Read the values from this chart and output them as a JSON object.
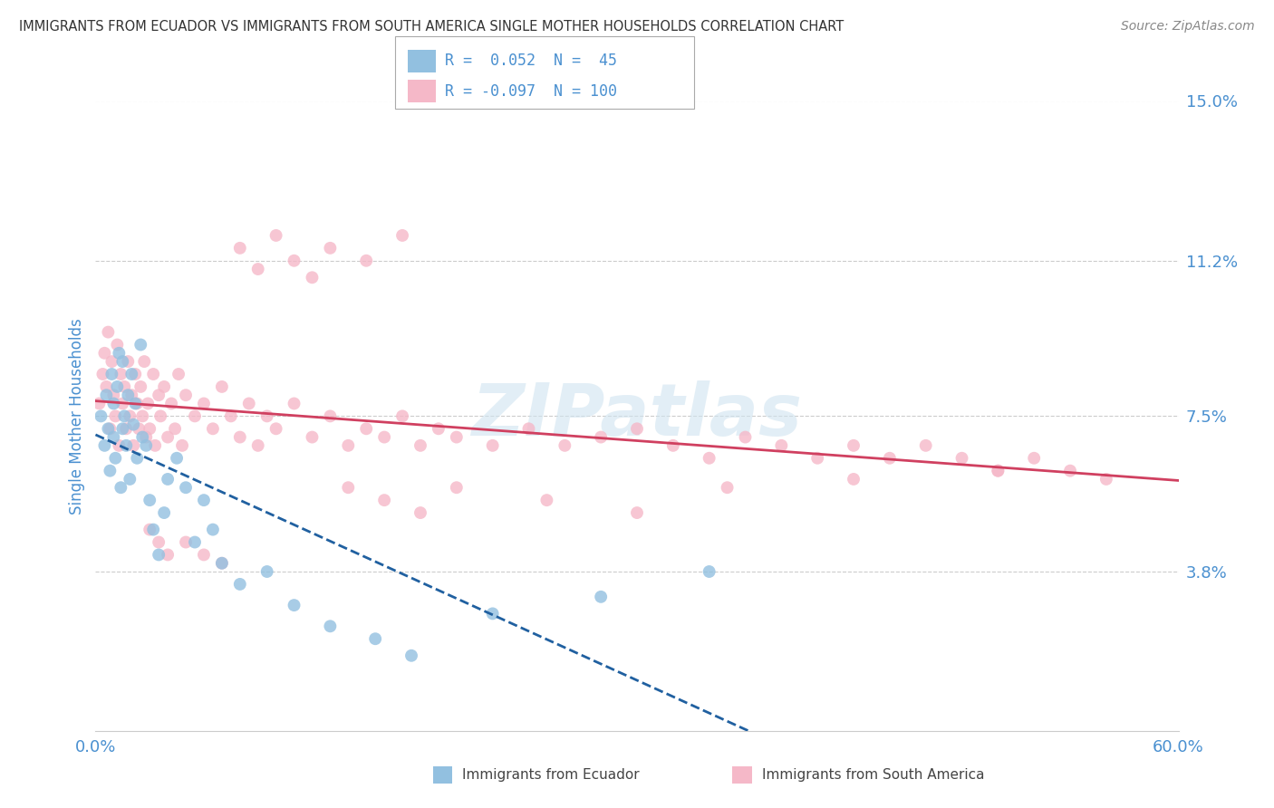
{
  "title": "IMMIGRANTS FROM ECUADOR VS IMMIGRANTS FROM SOUTH AMERICA SINGLE MOTHER HOUSEHOLDS CORRELATION CHART",
  "source": "Source: ZipAtlas.com",
  "ylabel": "Single Mother Households",
  "xmin": 0.0,
  "xmax": 0.6,
  "ymin": 0.0,
  "ymax": 0.15,
  "yticks": [
    0.038,
    0.075,
    0.112,
    0.15
  ],
  "ytick_labels": [
    "3.8%",
    "7.5%",
    "11.2%",
    "15.0%"
  ],
  "xtick_labels": [
    "0.0%",
    "60.0%"
  ],
  "color_blue": "#92c0e0",
  "color_pink": "#f5b8c8",
  "color_line_blue": "#2060a0",
  "color_line_pink": "#d04060",
  "color_tick_label": "#4a90d0",
  "color_axis_label": "#4a90d0",
  "ecuador_x": [
    0.003,
    0.005,
    0.006,
    0.007,
    0.008,
    0.009,
    0.01,
    0.01,
    0.011,
    0.012,
    0.013,
    0.014,
    0.015,
    0.015,
    0.016,
    0.017,
    0.018,
    0.019,
    0.02,
    0.021,
    0.022,
    0.023,
    0.025,
    0.026,
    0.028,
    0.03,
    0.032,
    0.035,
    0.038,
    0.04,
    0.045,
    0.05,
    0.055,
    0.06,
    0.065,
    0.07,
    0.08,
    0.095,
    0.11,
    0.13,
    0.155,
    0.175,
    0.22,
    0.28,
    0.34
  ],
  "ecuador_y": [
    0.075,
    0.068,
    0.08,
    0.072,
    0.062,
    0.085,
    0.07,
    0.078,
    0.065,
    0.082,
    0.09,
    0.058,
    0.088,
    0.072,
    0.075,
    0.068,
    0.08,
    0.06,
    0.085,
    0.073,
    0.078,
    0.065,
    0.092,
    0.07,
    0.068,
    0.055,
    0.048,
    0.042,
    0.052,
    0.06,
    0.065,
    0.058,
    0.045,
    0.055,
    0.048,
    0.04,
    0.035,
    0.038,
    0.03,
    0.025,
    0.022,
    0.018,
    0.028,
    0.032,
    0.038
  ],
  "southamerica_x": [
    0.002,
    0.004,
    0.005,
    0.006,
    0.007,
    0.008,
    0.009,
    0.01,
    0.011,
    0.012,
    0.013,
    0.014,
    0.015,
    0.016,
    0.017,
    0.018,
    0.019,
    0.02,
    0.021,
    0.022,
    0.023,
    0.024,
    0.025,
    0.026,
    0.027,
    0.028,
    0.029,
    0.03,
    0.032,
    0.033,
    0.035,
    0.036,
    0.038,
    0.04,
    0.042,
    0.044,
    0.046,
    0.048,
    0.05,
    0.055,
    0.06,
    0.065,
    0.07,
    0.075,
    0.08,
    0.085,
    0.09,
    0.095,
    0.1,
    0.11,
    0.12,
    0.13,
    0.14,
    0.15,
    0.16,
    0.17,
    0.18,
    0.19,
    0.2,
    0.22,
    0.24,
    0.26,
    0.28,
    0.3,
    0.32,
    0.34,
    0.36,
    0.38,
    0.4,
    0.42,
    0.44,
    0.46,
    0.48,
    0.5,
    0.52,
    0.54,
    0.08,
    0.09,
    0.1,
    0.11,
    0.12,
    0.13,
    0.15,
    0.17,
    0.05,
    0.06,
    0.07,
    0.03,
    0.035,
    0.04,
    0.14,
    0.16,
    0.18,
    0.2,
    0.25,
    0.3,
    0.35,
    0.42,
    0.5,
    0.56
  ],
  "southamerica_y": [
    0.078,
    0.085,
    0.09,
    0.082,
    0.095,
    0.072,
    0.088,
    0.08,
    0.075,
    0.092,
    0.068,
    0.085,
    0.078,
    0.082,
    0.072,
    0.088,
    0.075,
    0.08,
    0.068,
    0.085,
    0.078,
    0.072,
    0.082,
    0.075,
    0.088,
    0.07,
    0.078,
    0.072,
    0.085,
    0.068,
    0.08,
    0.075,
    0.082,
    0.07,
    0.078,
    0.072,
    0.085,
    0.068,
    0.08,
    0.075,
    0.078,
    0.072,
    0.082,
    0.075,
    0.07,
    0.078,
    0.068,
    0.075,
    0.072,
    0.078,
    0.07,
    0.075,
    0.068,
    0.072,
    0.07,
    0.075,
    0.068,
    0.072,
    0.07,
    0.068,
    0.072,
    0.068,
    0.07,
    0.072,
    0.068,
    0.065,
    0.07,
    0.068,
    0.065,
    0.068,
    0.065,
    0.068,
    0.065,
    0.062,
    0.065,
    0.062,
    0.115,
    0.11,
    0.118,
    0.112,
    0.108,
    0.115,
    0.112,
    0.118,
    0.045,
    0.042,
    0.04,
    0.048,
    0.045,
    0.042,
    0.058,
    0.055,
    0.052,
    0.058,
    0.055,
    0.052,
    0.058,
    0.06,
    0.062,
    0.06
  ]
}
